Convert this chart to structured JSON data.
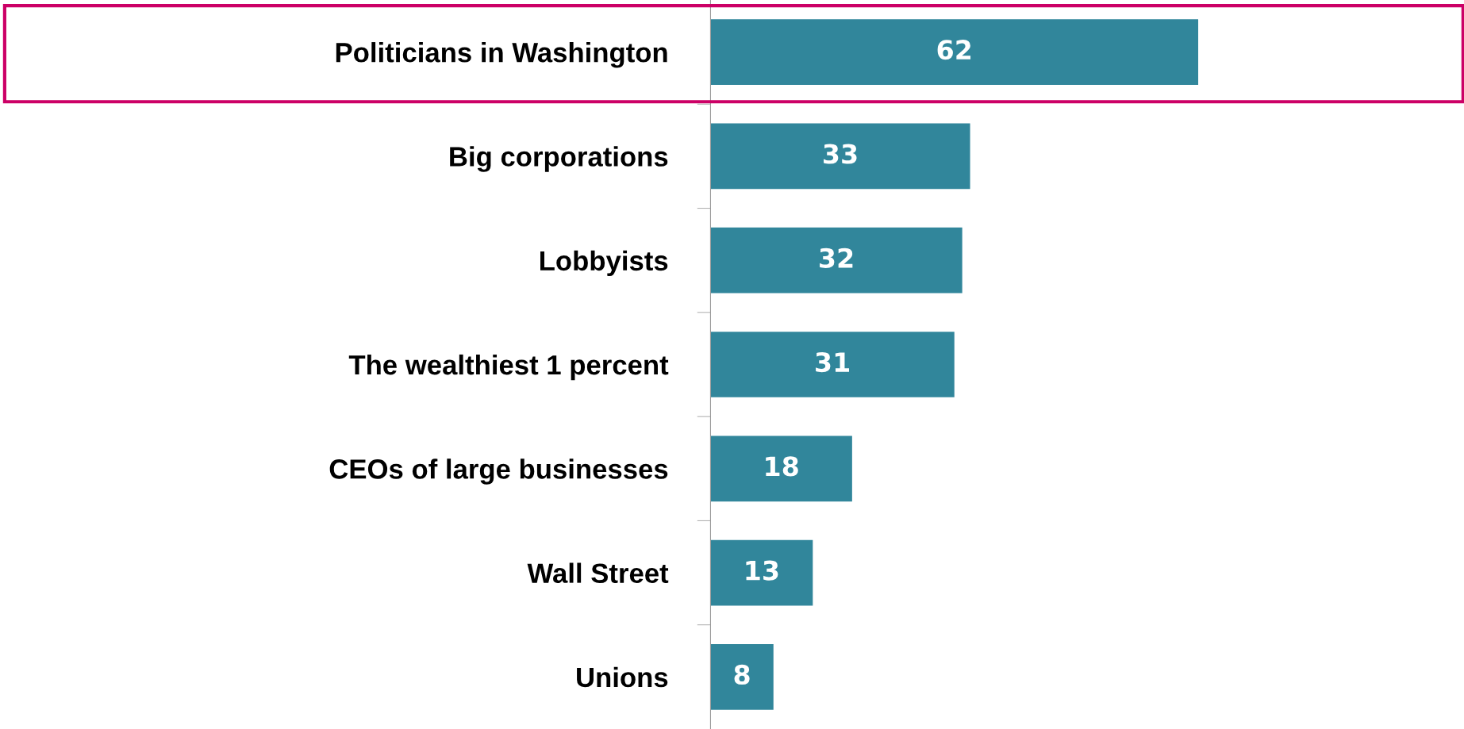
{
  "chart_data": {
    "type": "bar",
    "orientation": "horizontal",
    "categories": [
      "Politicians in Washington",
      "Big corporations",
      "Lobbyists",
      "The wealthiest 1 percent",
      "CEOs of large businesses",
      "Wall Street",
      "Unions"
    ],
    "values": [
      62,
      33,
      32,
      31,
      18,
      13,
      8
    ],
    "color": "#31869b",
    "data_labels": true,
    "grid": false,
    "legend": false
  }
}
